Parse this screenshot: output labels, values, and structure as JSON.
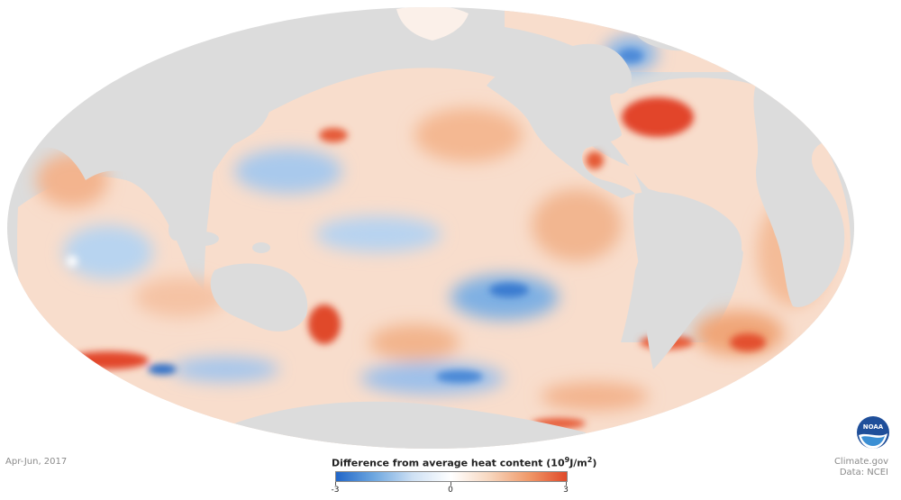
{
  "map": {
    "projection": "Mollweide (Pacific-centered)",
    "variable": "Difference from average heat content",
    "land_color": "#dcdcdc",
    "background": "#ffffff"
  },
  "footer": {
    "period": "Apr-Jun, 2017",
    "credit_line1": "Climate.gov",
    "credit_line2": "Data: NCEI"
  },
  "legend": {
    "title_prefix": "Difference from average heat content (10",
    "title_exp": "9",
    "title_mid": "J/m",
    "title_exp2": "2",
    "title_suffix": ")",
    "min_label": "-3",
    "mid_label": "0",
    "max_label": "3",
    "colors": [
      "#2166c8",
      "#6fa8e0",
      "#cfe1f4",
      "#ffffff",
      "#f7d6be",
      "#f09a6a",
      "#e04a2a"
    ]
  },
  "logo": {
    "name": "noaa-logo",
    "text": "NOAA"
  }
}
